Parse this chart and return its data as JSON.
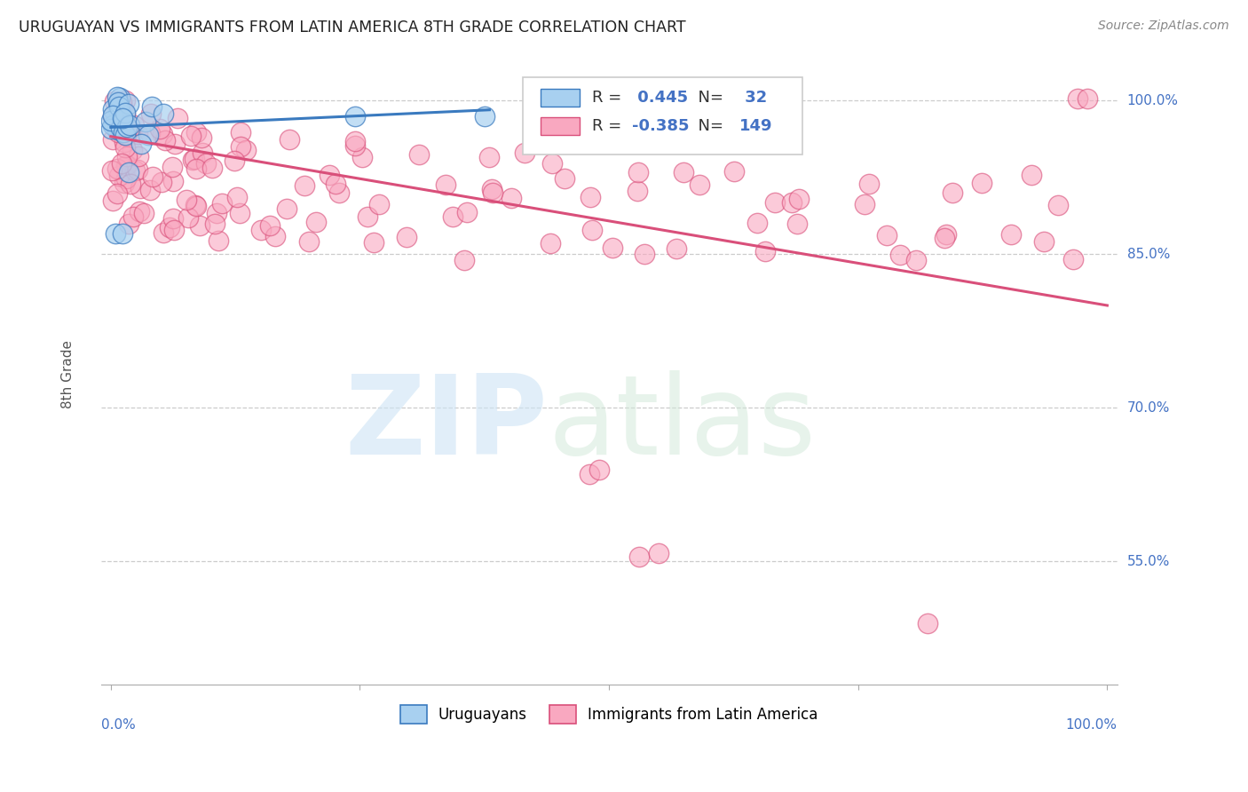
{
  "title": "URUGUAYAN VS IMMIGRANTS FROM LATIN AMERICA 8TH GRADE CORRELATION CHART",
  "source": "Source: ZipAtlas.com",
  "ylabel": "8th Grade",
  "legend_uruguayan": "Uruguayans",
  "legend_immigrant": "Immigrants from Latin America",
  "r_uruguayan": 0.445,
  "n_uruguayan": 32,
  "r_immigrant": -0.385,
  "n_immigrant": 149,
  "uruguayan_color": "#a8d0f0",
  "immigrant_color": "#f9a8c0",
  "trend_uruguayan_color": "#3a7abf",
  "trend_immigrant_color": "#d94f7a",
  "background_color": "#ffffff",
  "grid_color": "#cccccc",
  "ytick_values": [
    1.0,
    0.85,
    0.7,
    0.55
  ],
  "ytick_labels": [
    "100.0%",
    "85.0%",
    "70.0%",
    "55.0%"
  ],
  "ymin": 0.43,
  "ymax": 1.035,
  "xmin": -0.01,
  "xmax": 1.01
}
